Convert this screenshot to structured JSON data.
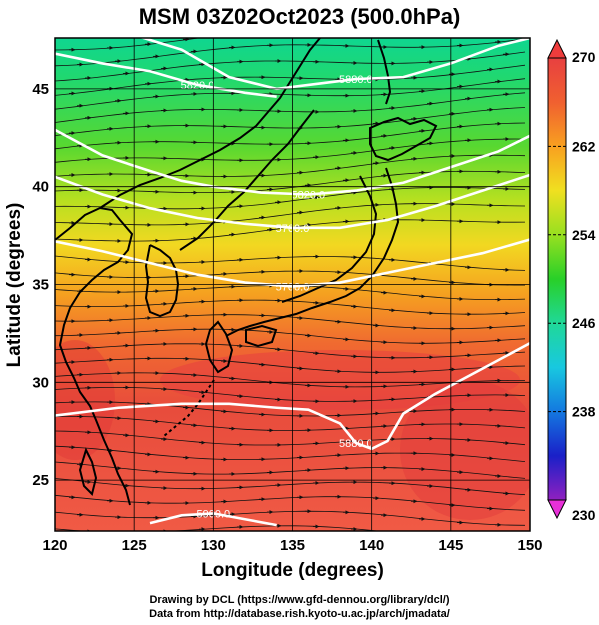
{
  "title": "MSM 03Z02Oct2023 (500.0hPa)",
  "xlabel": "Longitude (degrees)",
  "ylabel": "Latitude  (degrees)",
  "credits": {
    "line1": "Drawing by DCL (https://www.gfd-dennou.org/library/dcl/)",
    "line2": "Data from http://database.rish.kyoto-u.ac.jp/arch/jmadata/"
  },
  "axes": {
    "xlim": [
      120,
      150
    ],
    "ylim": [
      22.4,
      47.6
    ],
    "xticks": [
      "120",
      "125",
      "130",
      "135",
      "140",
      "145",
      "150"
    ],
    "xtick_values": [
      120,
      125,
      130,
      135,
      140,
      145,
      150
    ],
    "yticks": [
      "25",
      "30",
      "35",
      "40",
      "45"
    ],
    "ytick_values": [
      25,
      30,
      35,
      40,
      45
    ]
  },
  "colorbar": {
    "min": 230,
    "max": 270,
    "ticks": [
      "270",
      "262",
      "254",
      "246",
      "238",
      "230"
    ],
    "tick_values": [
      270,
      262,
      254,
      246,
      238,
      230
    ],
    "colors": [
      "#e830d8",
      "#9020c0",
      "#1a20c8",
      "#1478e0",
      "#18c8e0",
      "#20d898",
      "#28d028",
      "#98e020",
      "#f0e020",
      "#f8a020",
      "#f06030",
      "#e84040"
    ]
  },
  "contours": [
    {
      "label": "5820.0",
      "points": [
        [
          120,
          46.8
        ],
        [
          123,
          46.3
        ],
        [
          126,
          45.9
        ],
        [
          129,
          45.2
        ],
        [
          132,
          44.8
        ],
        [
          134,
          44.6
        ]
      ]
    },
    {
      "label": "5880.0",
      "points": [
        [
          124,
          48
        ],
        [
          128,
          47
        ],
        [
          131,
          45.6
        ],
        [
          134,
          45
        ],
        [
          136,
          45.2
        ],
        [
          139,
          45.5
        ],
        [
          142,
          45.6
        ],
        [
          145,
          46.3
        ],
        [
          148,
          47.2
        ],
        [
          150,
          47.6
        ]
      ]
    },
    {
      "label": "5820.0",
      "points": [
        [
          120,
          42.9
        ],
        [
          123,
          41.6
        ],
        [
          126,
          40.8
        ],
        [
          128,
          40.3
        ],
        [
          130,
          40.0
        ],
        [
          133,
          39.7
        ],
        [
          136,
          39.6
        ],
        [
          139,
          39.8
        ],
        [
          142,
          40.2
        ],
        [
          145,
          41.0
        ],
        [
          148,
          41.8
        ],
        [
          150,
          42.6
        ]
      ]
    },
    {
      "label": "5760.0",
      "points": [
        [
          120,
          40.5
        ],
        [
          123,
          39.6
        ],
        [
          126,
          38.9
        ],
        [
          129,
          38.4
        ],
        [
          132,
          38.1
        ],
        [
          135,
          37.9
        ],
        [
          138,
          37.9
        ],
        [
          141,
          38.3
        ],
        [
          144,
          39.0
        ],
        [
          147,
          39.8
        ],
        [
          150,
          40.6
        ]
      ]
    },
    {
      "label": "5700.0",
      "points": [
        [
          120,
          37.2
        ],
        [
          123,
          36.7
        ],
        [
          126,
          36.1
        ],
        [
          129,
          35.5
        ],
        [
          132,
          35.1
        ],
        [
          135,
          34.9
        ],
        [
          138,
          35.1
        ],
        [
          141,
          35.6
        ],
        [
          144,
          36.1
        ],
        [
          147,
          36.6
        ],
        [
          150,
          37.3
        ]
      ]
    },
    {
      "label": "5880.0",
      "points": [
        [
          120,
          28.3
        ],
        [
          124,
          28.7
        ],
        [
          128,
          28.9
        ],
        [
          131,
          28.9
        ],
        [
          134,
          28.7
        ],
        [
          136,
          28.6
        ],
        [
          138,
          27.9
        ],
        [
          139,
          26.9
        ],
        [
          140,
          26.6
        ],
        [
          141,
          27.0
        ],
        [
          142,
          28.4
        ],
        [
          144,
          29.4
        ],
        [
          147,
          30.7
        ],
        [
          150,
          32.0
        ]
      ]
    },
    {
      "label": "5900.0",
      "points": [
        [
          126,
          22.8
        ],
        [
          128,
          23.2
        ],
        [
          130,
          23.3
        ],
        [
          132,
          23.0
        ],
        [
          134,
          22.7
        ]
      ]
    }
  ]
}
